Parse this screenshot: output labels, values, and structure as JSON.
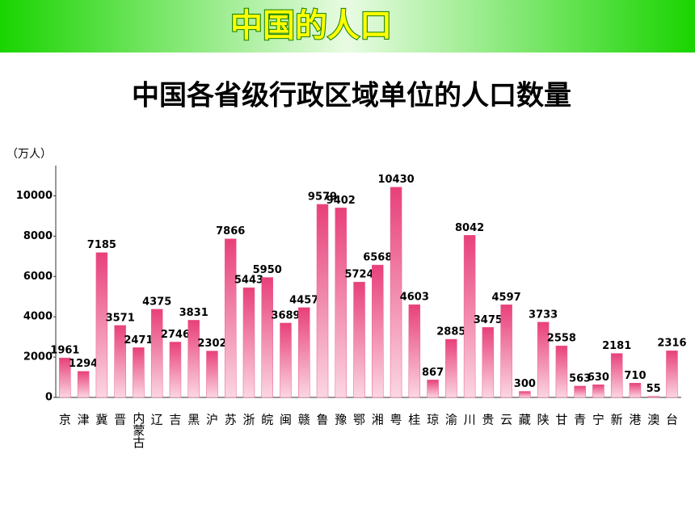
{
  "header": {
    "title": "中国的人口"
  },
  "chart_data": {
    "type": "bar",
    "title": "中国各省级行政区域单位的人口数量",
    "y_label": "（万人）",
    "categories": [
      "京",
      "津",
      "冀",
      "晋",
      "内蒙古",
      "辽",
      "吉",
      "黑",
      "沪",
      "苏",
      "浙",
      "皖",
      "闽",
      "赣",
      "鲁",
      "豫",
      "鄂",
      "湘",
      "粤",
      "桂",
      "琼",
      "渝",
      "川",
      "贵",
      "云",
      "藏",
      "陕",
      "甘",
      "青",
      "宁",
      "新",
      "港",
      "澳",
      "台"
    ],
    "values": [
      1961,
      1294,
      7185,
      3571,
      2471,
      4375,
      2746,
      3831,
      2302,
      7866,
      5443,
      5950,
      3689,
      4457,
      9579,
      9402,
      5724,
      6568,
      10430,
      4603,
      867,
      2885,
      8042,
      3475,
      4597,
      300,
      3733,
      2558,
      563,
      630,
      2181,
      710,
      55,
      2316
    ],
    "color": "#e8608f",
    "ylim": [
      0,
      11500
    ],
    "yticks": [
      0,
      2000,
      4000,
      6000,
      8000,
      10000
    ],
    "grid": false
  }
}
